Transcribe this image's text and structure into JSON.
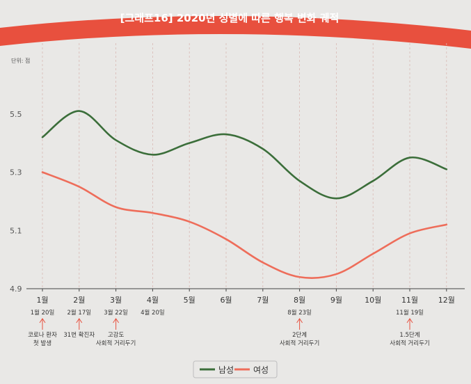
{
  "chart_data": {
    "type": "line",
    "title": "[그래프16] 2020년 성별에 따른 행복 변화 궤적",
    "unit_label": "단위: 점",
    "ylabel": "",
    "xlabel": "",
    "categories": [
      "1월",
      "2월",
      "3월",
      "4월",
      "5월",
      "6월",
      "7월",
      "8월",
      "9월",
      "10월",
      "11월",
      "12월"
    ],
    "ylim": [
      4.9,
      5.7
    ],
    "yticks": [
      "4.9",
      "5.1",
      "5.3",
      "5.5"
    ],
    "series": [
      {
        "name": "남성",
        "color": "#3b6e3a",
        "values": [
          5.42,
          5.51,
          5.41,
          5.36,
          5.4,
          5.43,
          5.38,
          5.27,
          5.21,
          5.27,
          5.35,
          5.31
        ]
      },
      {
        "name": "여성",
        "color": "#ee6d5a",
        "values": [
          5.3,
          5.25,
          5.18,
          5.16,
          5.13,
          5.07,
          4.99,
          4.94,
          4.95,
          5.02,
          5.09,
          5.12
        ]
      }
    ],
    "annotations": [
      {
        "month_index": 0,
        "date": "1월 20일",
        "lines": [
          "코로나 환자",
          "첫 발생"
        ]
      },
      {
        "month_index": 1,
        "date": "2월 17일",
        "lines": [
          "31번 확진자"
        ]
      },
      {
        "month_index": 2,
        "date": "3월 22일",
        "lines": [
          "고강도",
          "사회적 거리두기"
        ]
      },
      {
        "month_index": 3,
        "date": "4월 20일",
        "lines": []
      },
      {
        "month_index": 7,
        "date": "8월 23일",
        "lines": [
          "2단계",
          "사회적 거리두기"
        ]
      },
      {
        "month_index": 10,
        "date": "11월 19일",
        "lines": [
          "1.5단계",
          "사회적 거리두기"
        ]
      }
    ],
    "legend": "bottom",
    "grid": "vertical-dashed"
  },
  "colors": {
    "banner": "#e8503e",
    "male": "#3b6e3a",
    "female": "#ee6d5a",
    "arrow": "#e8503e",
    "grid": "#d9b9b4"
  }
}
